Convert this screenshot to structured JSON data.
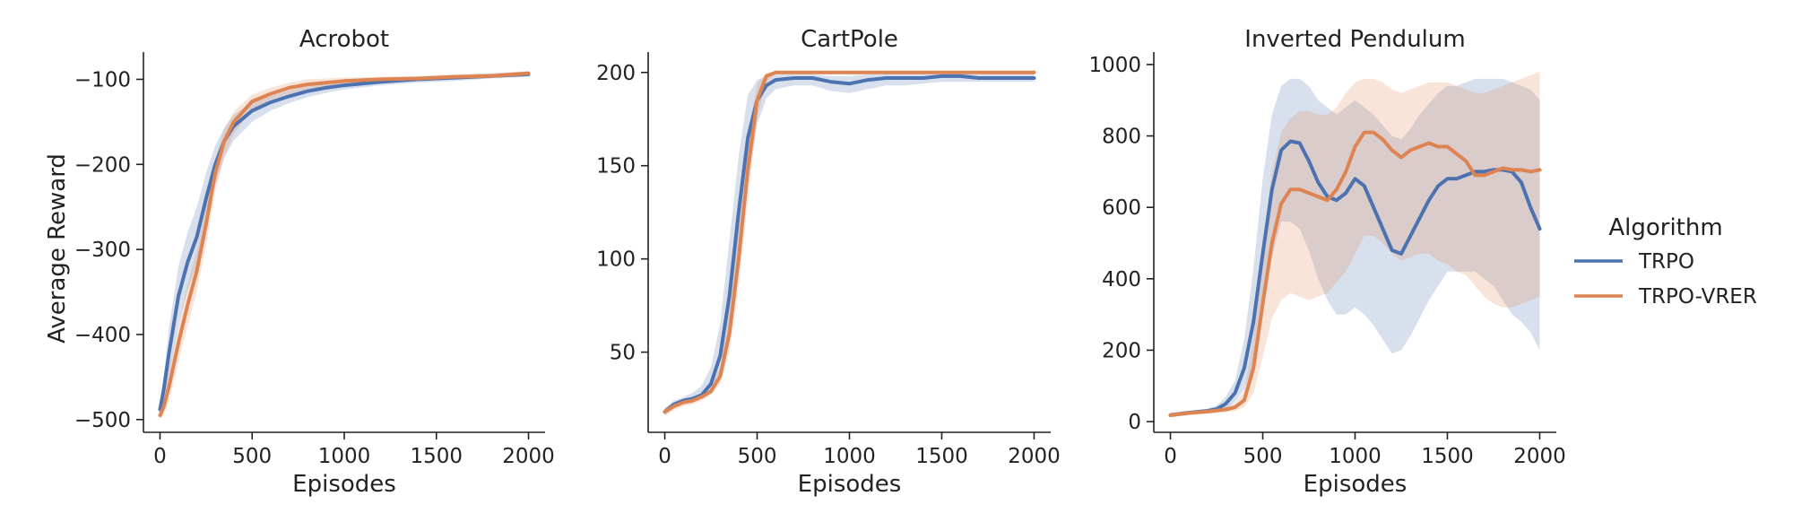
{
  "colors": {
    "trpo": "#4C72B0",
    "trpo_vrer": "#DD8452",
    "axis": "#222222",
    "background": "#ffffff"
  },
  "legend": {
    "title": "Algorithm",
    "placement": "right",
    "entries": [
      "TRPO",
      "TRPO-VRER"
    ]
  },
  "chart_data": [
    {
      "type": "line",
      "title": "Acrobot",
      "xlabel": "Episodes",
      "ylabel": "Average Reward",
      "xlim": [
        -90,
        2090
      ],
      "ylim": [
        -515,
        -70
      ],
      "xticks": [
        0,
        500,
        1000,
        1500,
        2000
      ],
      "yticks": [
        -500,
        -400,
        -300,
        -200,
        -100
      ],
      "ytick_labels": [
        "−500",
        "−400",
        "−300",
        "−200",
        "−100"
      ],
      "grid": false,
      "series": [
        {
          "name": "TRPO",
          "x": [
            0,
            20,
            50,
            100,
            150,
            200,
            250,
            300,
            350,
            400,
            500,
            600,
            700,
            800,
            900,
            1000,
            1200,
            1400,
            1600,
            1800,
            2000
          ],
          "y": [
            -488,
            -465,
            -420,
            -355,
            -315,
            -285,
            -240,
            -200,
            -172,
            -155,
            -137,
            -127,
            -120,
            -114,
            -110,
            -107,
            -103,
            -100,
            -98,
            -96,
            -94
          ],
          "lower": [
            -495,
            -480,
            -448,
            -388,
            -348,
            -318,
            -268,
            -224,
            -192,
            -172,
            -150,
            -137,
            -128,
            -121,
            -116,
            -112,
            -107,
            -104,
            -102,
            -99,
            -97
          ],
          "upper": [
            -480,
            -448,
            -390,
            -320,
            -280,
            -250,
            -210,
            -178,
            -156,
            -142,
            -127,
            -119,
            -113,
            -108,
            -105,
            -102,
            -99,
            -97,
            -95,
            -93,
            -91
          ]
        },
        {
          "name": "TRPO-VRER",
          "x": [
            0,
            20,
            50,
            100,
            150,
            200,
            250,
            300,
            350,
            400,
            500,
            600,
            700,
            800,
            900,
            1000,
            1200,
            1400,
            1600,
            1800,
            2000
          ],
          "y": [
            -495,
            -485,
            -460,
            -410,
            -365,
            -325,
            -270,
            -210,
            -172,
            -150,
            -126,
            -117,
            -110,
            -106,
            -104,
            -102,
            -100,
            -99,
            -97,
            -96,
            -93
          ],
          "lower": [
            -500,
            -494,
            -478,
            -432,
            -390,
            -350,
            -295,
            -232,
            -190,
            -164,
            -136,
            -124,
            -117,
            -112,
            -109,
            -106,
            -103,
            -102,
            -100,
            -98,
            -96
          ],
          "upper": [
            -488,
            -474,
            -440,
            -388,
            -340,
            -300,
            -248,
            -192,
            -158,
            -138,
            -118,
            -110,
            -104,
            -100,
            -99,
            -98,
            -97,
            -96,
            -94,
            -93,
            -90
          ]
        }
      ]
    },
    {
      "type": "line",
      "title": "CartPole",
      "xlabel": "Episodes",
      "ylabel": "",
      "xlim": [
        -90,
        2090
      ],
      "ylim": [
        7,
        210
      ],
      "xticks": [
        0,
        500,
        1000,
        1500,
        2000
      ],
      "yticks": [
        50,
        100,
        150,
        200
      ],
      "ytick_labels": [
        "50",
        "100",
        "150",
        "200"
      ],
      "grid": false,
      "series": [
        {
          "name": "TRPO",
          "x": [
            0,
            50,
            100,
            150,
            200,
            250,
            300,
            350,
            400,
            450,
            500,
            550,
            600,
            700,
            800,
            900,
            1000,
            1100,
            1200,
            1300,
            1400,
            1500,
            1600,
            1700,
            1800,
            1900,
            2000
          ],
          "y": [
            18,
            22,
            24,
            25,
            27,
            33,
            48,
            80,
            125,
            165,
            185,
            193,
            196,
            197,
            197,
            195,
            194,
            196,
            197,
            197,
            197,
            198,
            198,
            197,
            197,
            197,
            197
          ],
          "lower": [
            16,
            20,
            22,
            23,
            25,
            28,
            38,
            60,
            100,
            140,
            172,
            186,
            191,
            193,
            193,
            190,
            189,
            191,
            193,
            193,
            194,
            195,
            195,
            195,
            195,
            195,
            195
          ],
          "upper": [
            20,
            24,
            26,
            28,
            32,
            42,
            65,
            110,
            155,
            188,
            196,
            198,
            199,
            199,
            199,
            198,
            198,
            199,
            199,
            199,
            199,
            199,
            199,
            199,
            199,
            199,
            199
          ]
        },
        {
          "name": "TRPO-VRER",
          "x": [
            0,
            50,
            100,
            150,
            200,
            250,
            300,
            350,
            400,
            450,
            500,
            550,
            600,
            700,
            800,
            900,
            1000,
            1200,
            1400,
            1600,
            1800,
            2000
          ],
          "y": [
            18,
            21,
            23,
            24,
            26,
            29,
            37,
            60,
            100,
            148,
            185,
            198,
            200,
            200,
            200,
            200,
            200,
            200,
            200,
            200,
            200,
            200
          ],
          "lower": [
            16,
            19,
            21,
            22,
            24,
            27,
            33,
            50,
            85,
            132,
            175,
            195,
            199,
            199,
            199,
            199,
            199,
            199,
            199,
            199,
            199,
            199
          ],
          "upper": [
            20,
            23,
            25,
            26,
            28,
            32,
            42,
            72,
            118,
            165,
            194,
            200,
            200,
            200,
            200,
            200,
            200,
            200,
            200,
            200,
            200,
            200
          ]
        }
      ]
    },
    {
      "type": "line",
      "title": "Inverted Pendulum",
      "xlabel": "Episodes",
      "ylabel": "",
      "xlim": [
        -90,
        2090
      ],
      "ylim": [
        -30,
        1030
      ],
      "xticks": [
        0,
        500,
        1000,
        1500,
        2000
      ],
      "yticks": [
        0,
        200,
        400,
        600,
        800,
        1000
      ],
      "ytick_labels": [
        "0",
        "200",
        "400",
        "600",
        "800",
        "1000"
      ],
      "grid": false,
      "series": [
        {
          "name": "TRPO",
          "x": [
            0,
            100,
            200,
            250,
            300,
            350,
            400,
            450,
            500,
            550,
            600,
            650,
            700,
            750,
            800,
            850,
            900,
            950,
            1000,
            1050,
            1100,
            1150,
            1200,
            1250,
            1300,
            1350,
            1400,
            1450,
            1500,
            1550,
            1600,
            1650,
            1700,
            1750,
            1800,
            1850,
            1900,
            1950,
            2000
          ],
          "y": [
            18,
            25,
            30,
            35,
            50,
            80,
            150,
            280,
            470,
            650,
            760,
            785,
            780,
            730,
            670,
            630,
            620,
            640,
            680,
            660,
            600,
            540,
            480,
            470,
            520,
            570,
            620,
            660,
            680,
            680,
            690,
            700,
            700,
            705,
            705,
            700,
            670,
            600,
            540
          ],
          "lower": [
            12,
            20,
            24,
            28,
            35,
            55,
            90,
            160,
            300,
            460,
            560,
            560,
            540,
            480,
            400,
            340,
            300,
            300,
            320,
            300,
            270,
            230,
            190,
            200,
            240,
            290,
            340,
            380,
            420,
            420,
            420,
            420,
            400,
            380,
            340,
            300,
            280,
            250,
            200
          ],
          "upper": [
            25,
            30,
            36,
            45,
            70,
            115,
            230,
            430,
            680,
            860,
            940,
            960,
            960,
            940,
            900,
            880,
            860,
            880,
            900,
            880,
            860,
            830,
            800,
            790,
            820,
            860,
            890,
            920,
            940,
            940,
            950,
            960,
            960,
            960,
            960,
            950,
            940,
            930,
            900
          ]
        },
        {
          "name": "TRPO-VRER",
          "x": [
            0,
            100,
            200,
            300,
            350,
            400,
            450,
            500,
            550,
            600,
            650,
            700,
            750,
            800,
            850,
            900,
            950,
            1000,
            1050,
            1100,
            1150,
            1200,
            1250,
            1300,
            1350,
            1400,
            1450,
            1500,
            1550,
            1600,
            1650,
            1700,
            1750,
            1800,
            1850,
            1900,
            1950,
            2000
          ],
          "y": [
            18,
            24,
            28,
            34,
            40,
            60,
            150,
            330,
            500,
            610,
            650,
            650,
            640,
            630,
            620,
            650,
            700,
            770,
            810,
            810,
            790,
            760,
            740,
            760,
            770,
            780,
            770,
            770,
            750,
            730,
            690,
            690,
            700,
            710,
            705,
            705,
            700,
            705
          ],
          "lower": [
            12,
            18,
            22,
            26,
            30,
            40,
            80,
            180,
            290,
            340,
            360,
            350,
            340,
            350,
            360,
            390,
            420,
            470,
            520,
            520,
            500,
            470,
            450,
            460,
            470,
            470,
            450,
            440,
            420,
            410,
            380,
            350,
            330,
            320,
            320,
            330,
            340,
            350
          ],
          "upper": [
            25,
            30,
            35,
            42,
            52,
            85,
            240,
            500,
            700,
            810,
            850,
            870,
            870,
            860,
            860,
            880,
            920,
            950,
            960,
            960,
            950,
            930,
            920,
            930,
            940,
            950,
            950,
            950,
            940,
            930,
            920,
            920,
            930,
            940,
            950,
            960,
            970,
            980
          ]
        }
      ]
    }
  ]
}
